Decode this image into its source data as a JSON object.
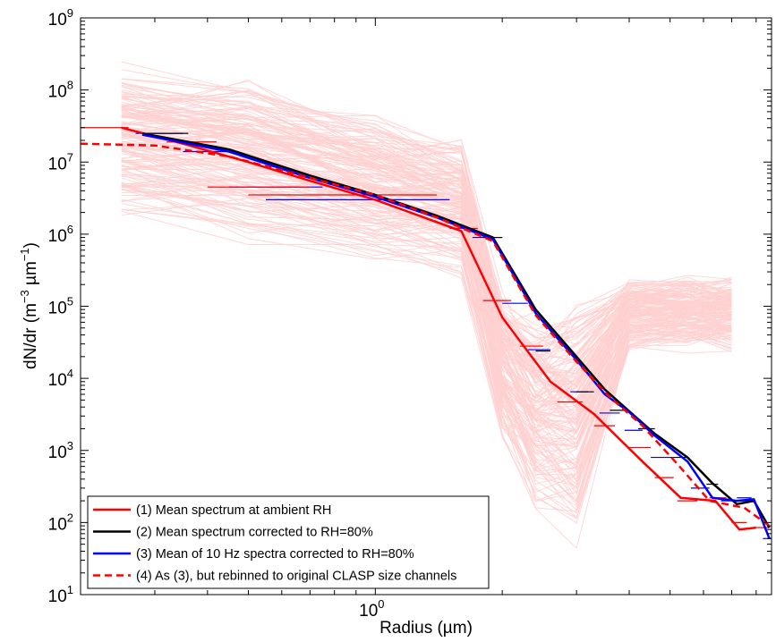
{
  "chart_data": {
    "type": "line",
    "xlabel": "Radius (µm)",
    "ylabel_main": "dN/dr (m",
    "ylabel_sup1": "−3",
    "ylabel_mid": " µm",
    "ylabel_sup2": "−1",
    "ylabel_end": ")",
    "x_scale": "log",
    "y_scale": "log",
    "xlim": [
      0.2,
      8.7
    ],
    "ylim": [
      10,
      1000000000
    ],
    "x_ticks": [
      {
        "base": "10",
        "exp": "0",
        "value": 1
      }
    ],
    "y_ticks": [
      {
        "base": "10",
        "exp": "1",
        "value": 10
      },
      {
        "base": "10",
        "exp": "2",
        "value": 100
      },
      {
        "base": "10",
        "exp": "3",
        "value": 1000
      },
      {
        "base": "10",
        "exp": "4",
        "value": 10000
      },
      {
        "base": "10",
        "exp": "5",
        "value": 100000
      },
      {
        "base": "10",
        "exp": "6",
        "value": 1000000
      },
      {
        "base": "10",
        "exp": "7",
        "value": 10000000
      },
      {
        "base": "10",
        "exp": "8",
        "value": 100000000
      },
      {
        "base": "10",
        "exp": "9",
        "value": 1000000000
      }
    ],
    "legend_position": "bottom-left",
    "background_spectra": {
      "color": "#ffd0d0",
      "count": 160,
      "x": [
        0.25,
        0.5,
        1.0,
        1.6,
        2.0,
        2.4,
        3.0,
        4.0,
        5.5,
        7.0
      ],
      "lower": [
        1000000,
        600000,
        300000,
        200000,
        1000,
        100,
        30,
        20000,
        20000,
        20000
      ],
      "upper": [
        300000000,
        200000000,
        60000000,
        30000000,
        200000,
        100000,
        200000,
        300000,
        300000,
        300000
      ]
    },
    "series": [
      {
        "name": "(1) Mean spectrum at ambient RH",
        "color": "#ff0000",
        "width": 2.5,
        "dash": "",
        "x": [
          0.25,
          0.35,
          0.5,
          0.7,
          1.0,
          1.6,
          2.0,
          2.6,
          3.3,
          4.3,
          5.3,
          6.4,
          7.3,
          8.0
        ],
        "y": [
          30000000,
          18000000,
          10000000,
          5500000,
          3000000,
          1100000,
          70000,
          9000,
          3200,
          700,
          220,
          200,
          80,
          85
        ]
      },
      {
        "name": "(2) Mean spectrum corrected to RH=80%",
        "color": "#000000",
        "width": 2.5,
        "dash": "",
        "x": [
          0.28,
          0.45,
          0.7,
          1.0,
          1.4,
          1.9,
          2.4,
          3.0,
          3.5,
          4.0,
          4.6,
          5.5,
          6.3,
          7.2,
          7.9,
          8.6
        ],
        "y": [
          25000000,
          15000000,
          6500000,
          3500000,
          1800000,
          900000,
          90000,
          20000,
          7000,
          3500,
          1700,
          800,
          350,
          180,
          200,
          85
        ]
      },
      {
        "name": "(3) Mean of 10 Hz spectra corrected to RH=80%",
        "color": "#0000ff",
        "width": 2.5,
        "dash": "",
        "x": [
          0.28,
          0.45,
          0.7,
          1.0,
          1.4,
          1.9,
          2.4,
          3.0,
          3.5,
          4.0,
          4.6,
          5.5,
          6.3,
          7.2,
          7.9,
          8.6
        ],
        "y": [
          24000000,
          14000000,
          6000000,
          3300000,
          1700000,
          850000,
          80000,
          18000,
          6000,
          3400,
          1600,
          700,
          220,
          200,
          210,
          60
        ]
      },
      {
        "name": "(4) As (3), but rebinned to original CLASP size channels",
        "color": "#ff0000",
        "width": 2.5,
        "dash": "8,5",
        "x": [
          0.2,
          0.3,
          0.45,
          0.7,
          1.0,
          1.4,
          1.9,
          2.4,
          3.0,
          3.6,
          4.3,
          5.2,
          6.2,
          7.5,
          8.6
        ],
        "y": [
          18000000,
          17000000,
          12000000,
          6000000,
          3500000,
          1700000,
          800000,
          75000,
          17000,
          5500,
          2200,
          650,
          200,
          160,
          90
        ]
      }
    ],
    "bins": [
      {
        "color": "#0000ff",
        "segments": [
          [
            0.27,
            0.35,
            25000000
          ],
          [
            0.35,
            0.45,
            14000000
          ],
          [
            0.45,
            0.75,
            4500000
          ],
          [
            0.55,
            1.5,
            3000000
          ],
          [
            1.7,
            2.0,
            900000
          ],
          [
            2.0,
            2.3,
            110000
          ],
          [
            2.3,
            2.6,
            25000
          ],
          [
            2.9,
            3.2,
            6500
          ],
          [
            3.4,
            3.8,
            3300
          ],
          [
            3.9,
            4.3,
            1900
          ],
          [
            4.5,
            5.0,
            800
          ],
          [
            5.6,
            6.2,
            300
          ],
          [
            6.6,
            7.2,
            200
          ],
          [
            7.2,
            7.8,
            220
          ],
          [
            8.3,
            8.7,
            60
          ]
        ]
      },
      {
        "color": "#ff0000",
        "segments": [
          [
            0.2,
            0.26,
            30000000
          ],
          [
            0.32,
            0.42,
            19000000
          ],
          [
            0.4,
            0.7,
            4500000
          ],
          [
            0.5,
            1.4,
            3500000
          ],
          [
            1.5,
            1.75,
            1200000
          ],
          [
            1.8,
            2.1,
            120000
          ],
          [
            2.2,
            2.5,
            28000
          ],
          [
            2.7,
            3.1,
            4700
          ],
          [
            3.3,
            3.7,
            2200
          ],
          [
            4.0,
            4.5,
            1100
          ],
          [
            4.6,
            5.1,
            420
          ],
          [
            5.2,
            5.8,
            200
          ],
          [
            6.2,
            6.8,
            220
          ],
          [
            7.0,
            7.6,
            100
          ],
          [
            8.0,
            8.6,
            85
          ]
        ]
      },
      {
        "color": "#000000",
        "segments": [
          [
            0.28,
            0.36,
            25000000
          ],
          [
            1.8,
            2.0,
            900000
          ],
          [
            2.4,
            2.6,
            24000
          ],
          [
            3.0,
            3.3,
            6500
          ],
          [
            3.6,
            3.9,
            3600
          ],
          [
            4.2,
            4.6,
            2000
          ],
          [
            5.0,
            5.5,
            800
          ],
          [
            6.1,
            6.5,
            340
          ],
          [
            7.2,
            7.6,
            200
          ]
        ]
      }
    ]
  }
}
